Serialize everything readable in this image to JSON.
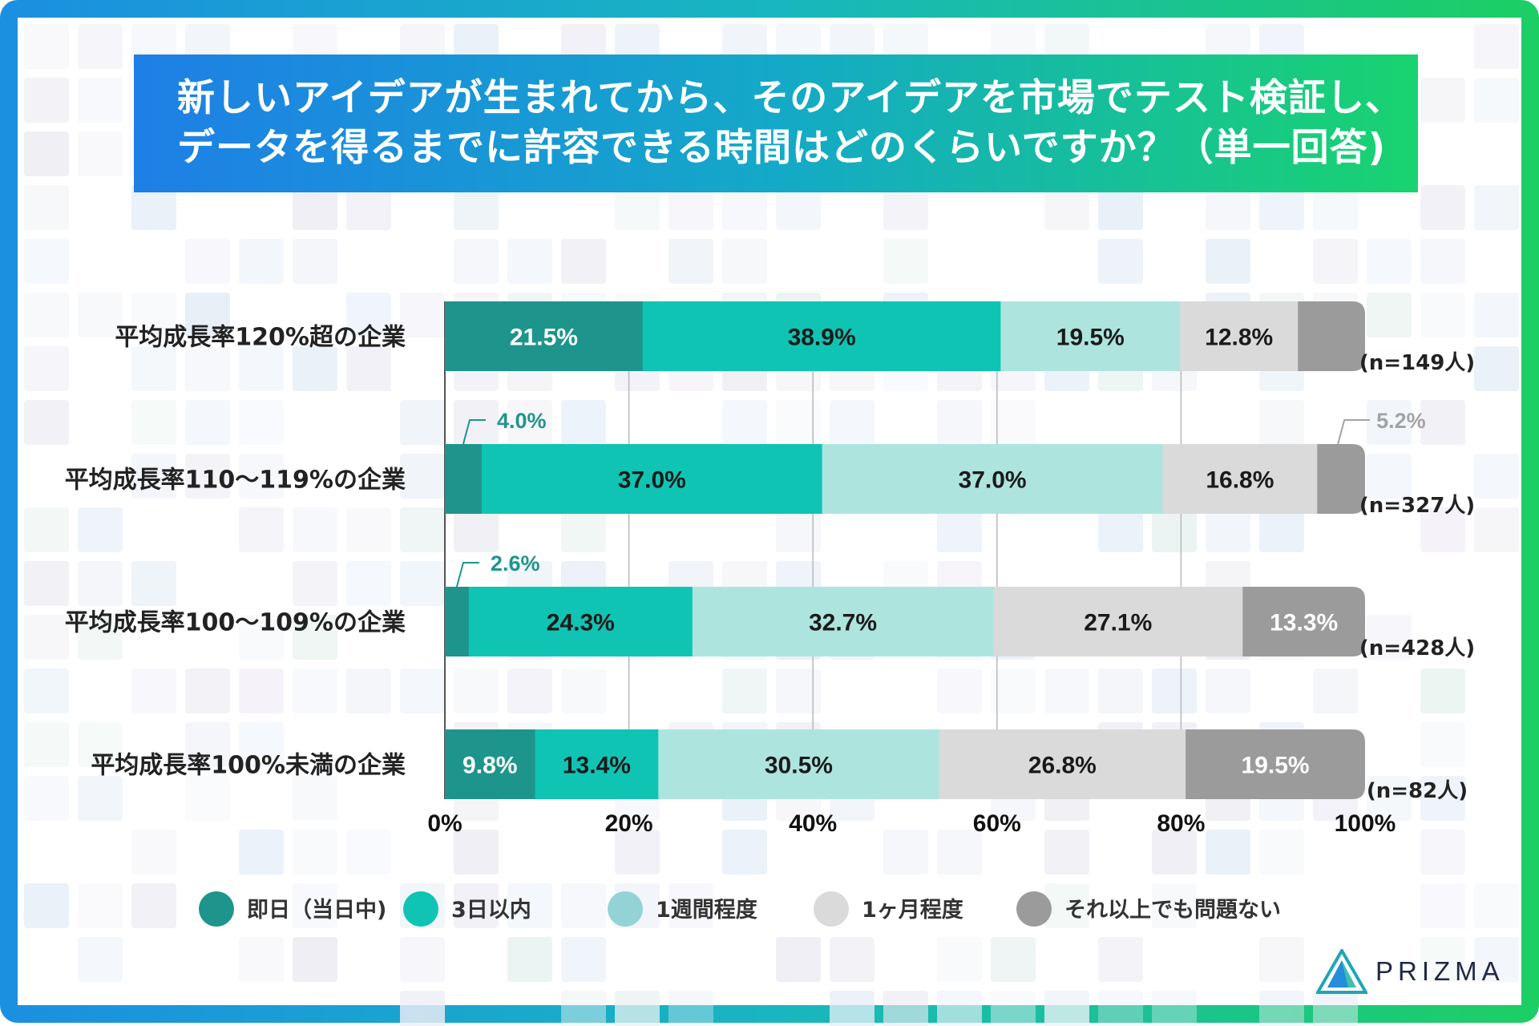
{
  "title": {
    "line1": "新しいアイデアが生まれてから、そのアイデアを市場でテスト検証し、",
    "line2": "データを得るまでに許容できる時間はどのくらいですか？（単一回答)"
  },
  "chart_data": {
    "type": "bar",
    "orientation": "horizontal",
    "stacked": true,
    "xlim": [
      0,
      100
    ],
    "x_ticks": [
      "0%",
      "20%",
      "40%",
      "60%",
      "80%",
      "100%"
    ],
    "categories": [
      "平均成長率120%超の企業",
      "平均成長率110～119%の企業",
      "平均成長率100～109%の企業",
      "平均成長率100%未満の企業"
    ],
    "sample_sizes": [
      "(n=149人)",
      "(n=327人)",
      "(n=428人)",
      "(n=82人)"
    ],
    "series": [
      {
        "name": "即日（当日中)",
        "color": "#1e958c",
        "label_color": "#ffffff",
        "legend_color": "#1e958c",
        "values": [
          21.5,
          4.0,
          2.6,
          9.8
        ],
        "labels": [
          "21.5%",
          "4.0%",
          "2.6%",
          "9.8%"
        ]
      },
      {
        "name": "3日以内",
        "color": "#10c4b4",
        "label_color": "#1a1a1a",
        "legend_color": "#10c4b4",
        "values": [
          38.9,
          37.0,
          24.3,
          13.4
        ],
        "labels": [
          "38.9%",
          "37.0%",
          "24.3%",
          "13.4%"
        ]
      },
      {
        "name": "1週間程度",
        "color": "#ade5de",
        "label_color": "#1a1a1a",
        "legend_color": "#93d3d6",
        "values": [
          19.5,
          37.0,
          32.7,
          30.5
        ],
        "labels": [
          "19.5%",
          "37.0%",
          "32.7%",
          "30.5%"
        ]
      },
      {
        "name": "1ヶ月程度",
        "color": "#dadada",
        "label_color": "#1a1a1a",
        "legend_color": "#dadada",
        "values": [
          12.8,
          16.8,
          27.1,
          26.8
        ],
        "labels": [
          "12.8%",
          "16.8%",
          "27.1%",
          "26.8%"
        ]
      },
      {
        "name": "それ以上でも問題ない",
        "color": "#9b9b9b",
        "label_color": "#ffffff",
        "legend_color": "#9b9b9b",
        "values": [
          7.3,
          5.2,
          13.3,
          19.5
        ],
        "labels": [
          "",
          "5.2%",
          "13.3%",
          "19.5%"
        ]
      }
    ],
    "callouts": [
      {
        "row": 1,
        "series": 0,
        "text": "4.0%",
        "color": "#1e958c"
      },
      {
        "row": 1,
        "series": 4,
        "text": "5.2%",
        "color": "#a3a3a3"
      },
      {
        "row": 2,
        "series": 0,
        "text": "2.6%",
        "color": "#1e958c"
      }
    ]
  },
  "brand": {
    "name": "PRIZMA"
  }
}
